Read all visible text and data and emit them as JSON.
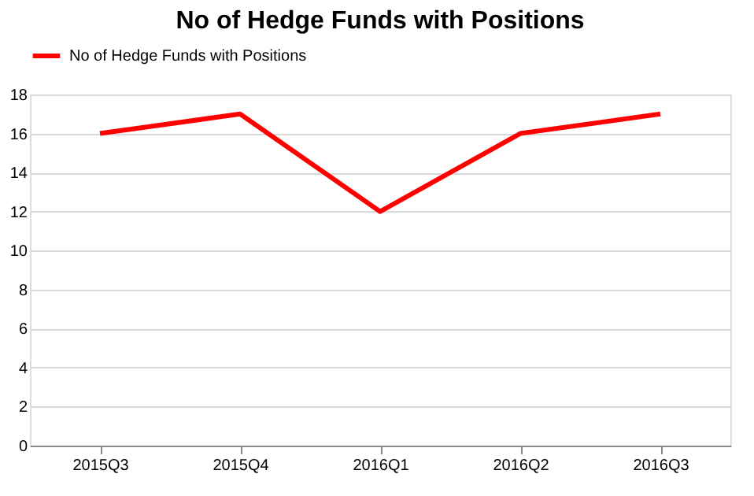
{
  "chart_data": {
    "type": "line",
    "title": "No of Hedge Funds with Positions",
    "categories": [
      "2015Q3",
      "2015Q4",
      "2016Q1",
      "2016Q2",
      "2016Q3"
    ],
    "series": [
      {
        "name": "No of Hedge Funds with Positions",
        "color": "#ff0000",
        "values": [
          16,
          17,
          12,
          16,
          17
        ]
      }
    ],
    "ylim": [
      0,
      18
    ],
    "yticks": [
      0,
      2,
      4,
      6,
      8,
      10,
      12,
      14,
      16,
      18
    ],
    "grid": "y",
    "legend": "top",
    "marker": "none",
    "line_style": "solid"
  }
}
